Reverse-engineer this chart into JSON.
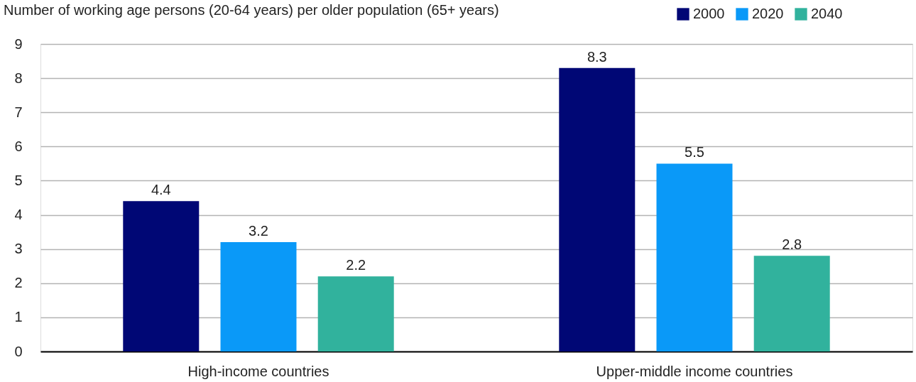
{
  "chart_data": {
    "type": "bar",
    "title": "Number of working age persons (20-64 years) per older population (65+ years)",
    "categories": [
      "High-income countries",
      "Upper-middle income countries"
    ],
    "series": [
      {
        "name": "2000",
        "color": "#000775",
        "values": [
          4.4,
          8.3
        ]
      },
      {
        "name": "2020",
        "color": "#0a99f8",
        "values": [
          3.2,
          5.5
        ]
      },
      {
        "name": "2040",
        "color": "#31b29d",
        "values": [
          2.2,
          2.8
        ]
      }
    ],
    "ylim": [
      0,
      9
    ],
    "yticks": [
      0,
      1,
      2,
      3,
      4,
      5,
      6,
      7,
      8,
      9
    ],
    "grid": "y",
    "legend": "top right",
    "data_labels": true
  }
}
